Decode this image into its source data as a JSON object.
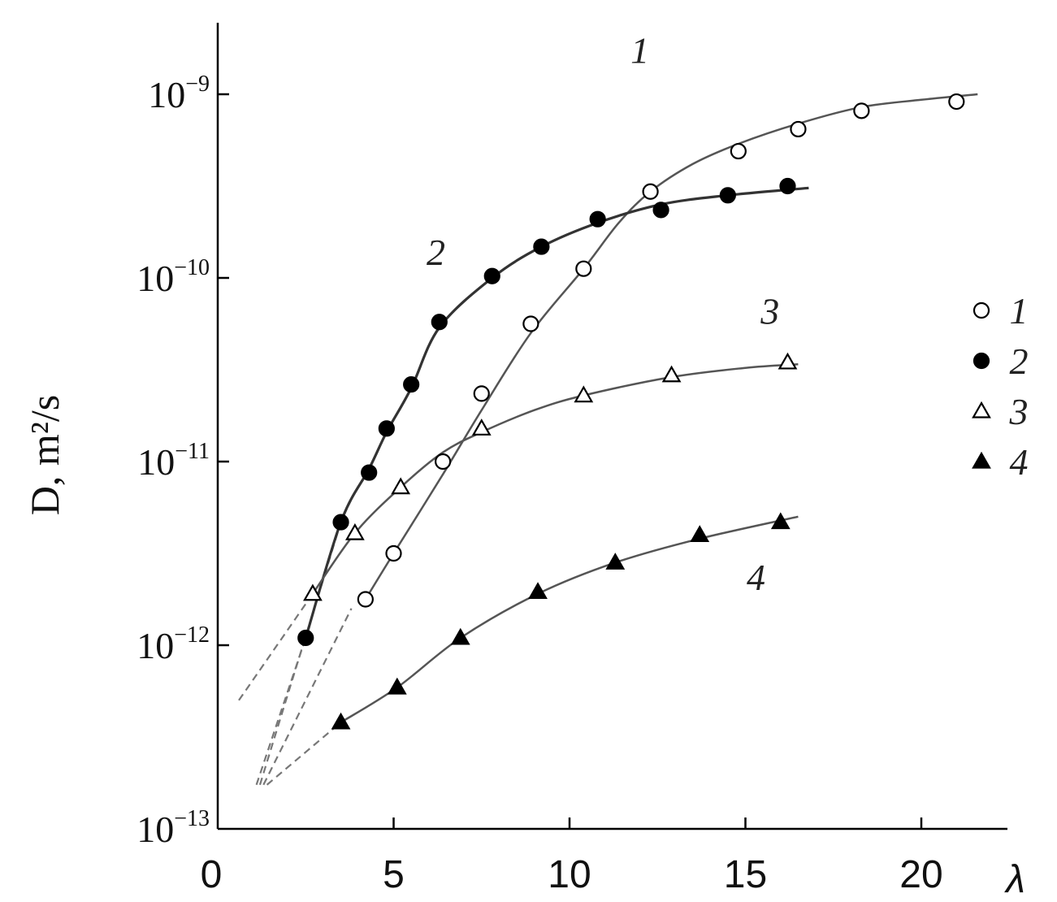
{
  "chart_data": {
    "type": "scatter",
    "xlabel": "λ",
    "ylabel": "D, m²/s",
    "xlim": [
      0,
      22
    ],
    "ylim_log10": [
      -13,
      -8.6
    ],
    "y_log_scale": true,
    "xticks": [
      {
        "value": 0,
        "label": "0"
      },
      {
        "value": 5,
        "label": "5"
      },
      {
        "value": 10,
        "label": "10"
      },
      {
        "value": 15,
        "label": "15"
      },
      {
        "value": 20,
        "label": "20"
      }
    ],
    "yticks": [
      {
        "exp": -9,
        "base": "10",
        "sup": "−9"
      },
      {
        "exp": -10,
        "base": "10",
        "sup": "−10"
      },
      {
        "exp": -11,
        "base": "10",
        "sup": "−11"
      },
      {
        "exp": -12,
        "base": "10",
        "sup": "−12"
      },
      {
        "exp": -13,
        "base": "10",
        "sup": "−13"
      }
    ],
    "legend": {
      "placement": "right",
      "entries": [
        {
          "label": "1",
          "marker": "open-circle"
        },
        {
          "label": "2",
          "marker": "filled-circle"
        },
        {
          "label": "3",
          "marker": "open-triangle"
        },
        {
          "label": "4",
          "marker": "filled-triangle"
        }
      ]
    },
    "series": [
      {
        "name": "1",
        "marker": "open-circle",
        "curve_label_at": [
          12,
          -8.83
        ],
        "points": [
          [
            4.2,
            -11.75
          ],
          [
            5.0,
            -11.5
          ],
          [
            6.4,
            -11.0
          ],
          [
            7.5,
            -10.63
          ],
          [
            8.9,
            -10.25
          ],
          [
            10.4,
            -9.95
          ],
          [
            12.3,
            -9.53
          ],
          [
            14.8,
            -9.31
          ],
          [
            16.5,
            -9.19
          ],
          [
            18.3,
            -9.09
          ],
          [
            21.0,
            -9.04
          ]
        ],
        "curve": [
          [
            4.2,
            -11.75
          ],
          [
            5.0,
            -11.5
          ],
          [
            6.4,
            -11.07
          ],
          [
            7.5,
            -10.72
          ],
          [
            8.9,
            -10.3
          ],
          [
            10.4,
            -9.95
          ],
          [
            11.4,
            -9.7
          ],
          [
            12.3,
            -9.53
          ],
          [
            13.5,
            -9.38
          ],
          [
            14.8,
            -9.27
          ],
          [
            16.5,
            -9.16
          ],
          [
            18.3,
            -9.07
          ],
          [
            20.0,
            -9.03
          ],
          [
            21.6,
            -9.0
          ]
        ]
      },
      {
        "name": "2",
        "marker": "filled-circle",
        "curve_label_at": [
          6.2,
          -9.93
        ],
        "points": [
          [
            2.5,
            -11.96
          ],
          [
            3.5,
            -11.33
          ],
          [
            4.3,
            -11.06
          ],
          [
            4.8,
            -10.82
          ],
          [
            5.5,
            -10.58
          ],
          [
            6.3,
            -10.24
          ],
          [
            7.8,
            -9.99
          ],
          [
            9.2,
            -9.83
          ],
          [
            10.8,
            -9.68
          ],
          [
            12.6,
            -9.63
          ],
          [
            14.5,
            -9.55
          ],
          [
            16.2,
            -9.5
          ]
        ],
        "curve": [
          [
            2.5,
            -11.96
          ],
          [
            3.5,
            -11.33
          ],
          [
            4.3,
            -11.04
          ],
          [
            4.8,
            -10.84
          ],
          [
            5.5,
            -10.6
          ],
          [
            6.3,
            -10.27
          ],
          [
            7.8,
            -10.0
          ],
          [
            9.2,
            -9.83
          ],
          [
            10.8,
            -9.7
          ],
          [
            12.6,
            -9.6
          ],
          [
            14.5,
            -9.55
          ],
          [
            16.8,
            -9.51
          ]
        ]
      },
      {
        "name": "3",
        "marker": "open-triangle",
        "curve_label_at": [
          15.7,
          -10.25
        ],
        "points": [
          [
            2.7,
            -11.72
          ],
          [
            3.9,
            -11.39
          ],
          [
            5.2,
            -11.14
          ],
          [
            7.5,
            -10.82
          ],
          [
            10.4,
            -10.64
          ],
          [
            12.9,
            -10.53
          ],
          [
            16.2,
            -10.46
          ]
        ],
        "curve": [
          [
            2.7,
            -11.72
          ],
          [
            3.9,
            -11.39
          ],
          [
            5.2,
            -11.14
          ],
          [
            6.4,
            -10.95
          ],
          [
            7.5,
            -10.84
          ],
          [
            9.0,
            -10.72
          ],
          [
            10.4,
            -10.64
          ],
          [
            12.9,
            -10.54
          ],
          [
            15.0,
            -10.49
          ],
          [
            16.5,
            -10.47
          ]
        ]
      },
      {
        "name": "4",
        "marker": "filled-triangle",
        "curve_label_at": [
          15.3,
          -11.7
        ],
        "points": [
          [
            3.5,
            -12.42
          ],
          [
            5.1,
            -12.23
          ],
          [
            6.9,
            -11.96
          ],
          [
            9.1,
            -11.71
          ],
          [
            11.3,
            -11.55
          ],
          [
            13.7,
            -11.4
          ],
          [
            16.0,
            -11.33
          ]
        ],
        "curve": [
          [
            3.5,
            -12.42
          ],
          [
            5.1,
            -12.23
          ],
          [
            6.9,
            -11.96
          ],
          [
            9.1,
            -11.72
          ],
          [
            11.3,
            -11.55
          ],
          [
            13.7,
            -11.42
          ],
          [
            16.5,
            -11.3
          ]
        ]
      }
    ],
    "extrapolation_lines": [
      [
        [
          0.6,
          -12.3
        ],
        [
          2.7,
          -11.72
        ]
      ],
      [
        [
          1.1,
          -12.76
        ],
        [
          2.5,
          -11.96
        ]
      ],
      [
        [
          1.2,
          -12.76
        ],
        [
          3.5,
          -11.33
        ]
      ],
      [
        [
          1.3,
          -12.76
        ],
        [
          3.8,
          -11.8
        ]
      ],
      [
        [
          1.4,
          -12.76
        ],
        [
          3.5,
          -12.42
        ]
      ]
    ]
  }
}
